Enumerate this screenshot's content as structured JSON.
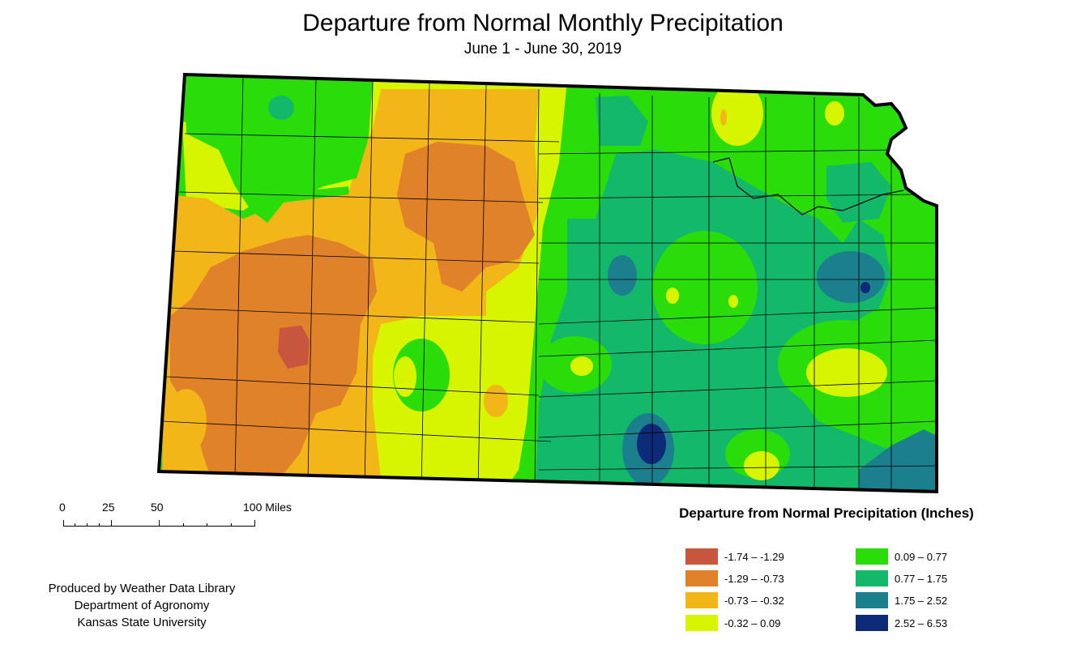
{
  "title": "Departure from Normal Monthly Precipitation",
  "subtitle": "June 1 - June 30, 2019",
  "legend": {
    "title": "Departure from Normal Precipitation (Inches)",
    "items": [
      {
        "label": "-1.74 – -1.29",
        "color": "#c8553d"
      },
      {
        "label": "-1.29 – -0.73",
        "color": "#e0822a"
      },
      {
        "label": "-0.73 – -0.32",
        "color": "#f2b619"
      },
      {
        "label": "-0.32 – 0.09",
        "color": "#d8f500"
      },
      {
        "label": "0.09 – 0.77",
        "color": "#2adc0a"
      },
      {
        "label": "0.77 – 1.75",
        "color": "#14b86a"
      },
      {
        "label": "1.75 – 2.52",
        "color": "#1b7f8e"
      },
      {
        "label": "2.52 – 6.53",
        "color": "#0c2a78"
      }
    ]
  },
  "scale": {
    "labels": [
      "0",
      "25",
      "50",
      "100 Miles"
    ]
  },
  "credits": [
    "Produced by Weather Data Library",
    "Department of Agronomy",
    "Kansas State University"
  ]
}
